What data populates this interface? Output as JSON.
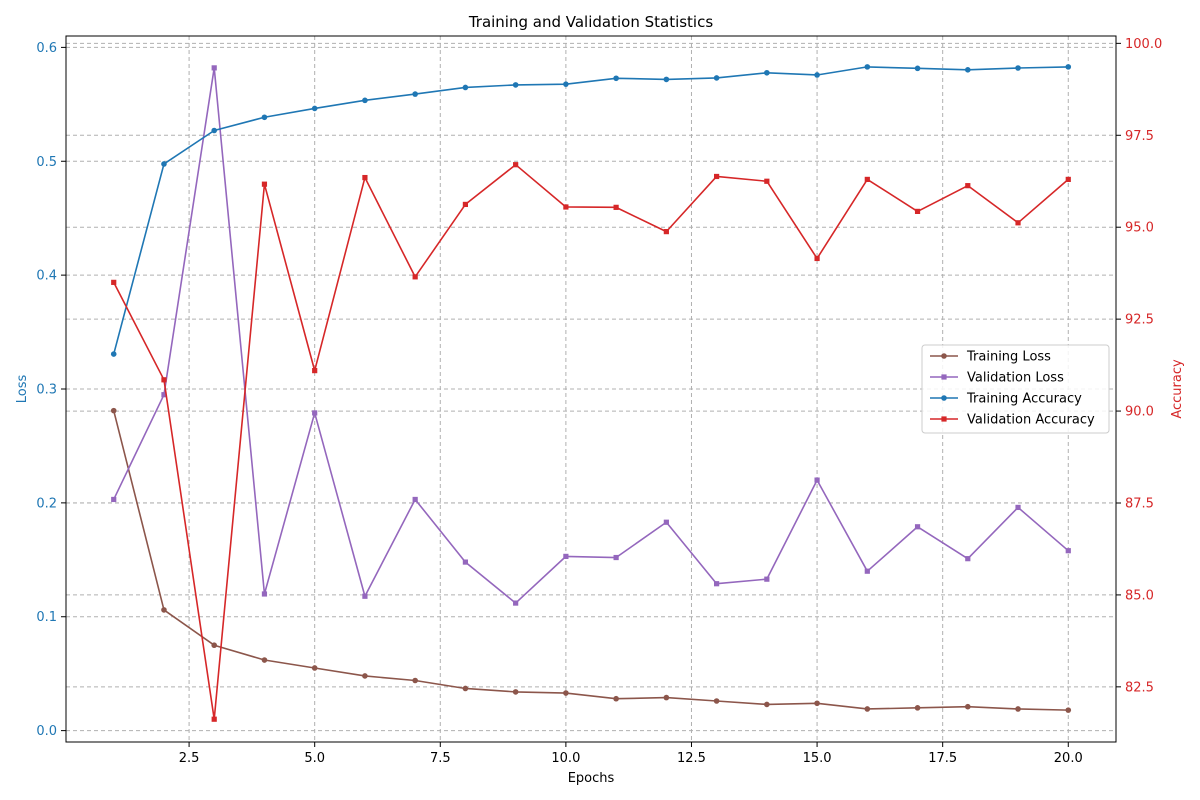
{
  "chart_data": {
    "type": "line",
    "title": "Training and Validation Statistics",
    "xlabel": "Epochs",
    "ylabel_left": "Loss",
    "ylabel_right": "Accuracy",
    "x": [
      1,
      2,
      3,
      4,
      5,
      6,
      7,
      8,
      9,
      10,
      11,
      12,
      13,
      14,
      15,
      16,
      17,
      18,
      19,
      20
    ],
    "xlim": [
      0.05,
      20.95
    ],
    "ylim_left": [
      -0.01,
      0.61
    ],
    "ylim_right": [
      81.0,
      100.2
    ],
    "x_ticks": [
      2.5,
      5.0,
      7.5,
      10.0,
      12.5,
      15.0,
      17.5,
      20.0
    ],
    "x_tick_labels": [
      "2.5",
      "5.0",
      "7.5",
      "10.0",
      "12.5",
      "15.0",
      "17.5",
      "20.0"
    ],
    "y_left_ticks": [
      0.0,
      0.1,
      0.2,
      0.3,
      0.4,
      0.5,
      0.6
    ],
    "y_left_tick_labels": [
      "0.0",
      "0.1",
      "0.2",
      "0.3",
      "0.4",
      "0.5",
      "0.6"
    ],
    "y_right_ticks": [
      82.5,
      85.0,
      87.5,
      90.0,
      92.5,
      95.0,
      97.5,
      100.0
    ],
    "y_right_tick_labels": [
      "82.5",
      "85.0",
      "87.5",
      "90.0",
      "92.5",
      "95.0",
      "97.5",
      "100.0"
    ],
    "left_axis_color": "#1f77b4",
    "right_axis_color": "#d62728",
    "grid": true,
    "legend_position": "center-right",
    "series": [
      {
        "name": "Training Loss",
        "axis": "left",
        "color": "#8c564b",
        "marker": "circle",
        "values": [
          0.281,
          0.106,
          0.075,
          0.062,
          0.055,
          0.048,
          0.044,
          0.037,
          0.034,
          0.033,
          0.028,
          0.029,
          0.026,
          0.023,
          0.024,
          0.019,
          0.02,
          0.021,
          0.019,
          0.018
        ]
      },
      {
        "name": "Validation Loss",
        "axis": "left",
        "color": "#9467bd",
        "marker": "square",
        "values": [
          0.203,
          0.295,
          0.582,
          0.12,
          0.279,
          0.118,
          0.203,
          0.148,
          0.112,
          0.153,
          0.152,
          0.183,
          0.129,
          0.133,
          0.22,
          0.14,
          0.179,
          0.151,
          0.196,
          0.158
        ]
      },
      {
        "name": "Training Accuracy",
        "axis": "right",
        "color": "#1f77b4",
        "marker": "circle",
        "values": [
          91.55,
          96.72,
          97.63,
          97.99,
          98.23,
          98.45,
          98.62,
          98.8,
          98.87,
          98.89,
          99.05,
          99.02,
          99.06,
          99.2,
          99.14,
          99.36,
          99.32,
          99.28,
          99.33,
          99.36
        ]
      },
      {
        "name": "Validation Accuracy",
        "axis": "right",
        "color": "#d62728",
        "marker": "square",
        "values": [
          93.5,
          90.85,
          81.62,
          96.17,
          91.1,
          96.35,
          93.65,
          95.62,
          96.7,
          95.55,
          95.54,
          94.88,
          96.38,
          96.25,
          94.15,
          96.3,
          95.43,
          96.13,
          95.12,
          96.3
        ]
      }
    ]
  }
}
